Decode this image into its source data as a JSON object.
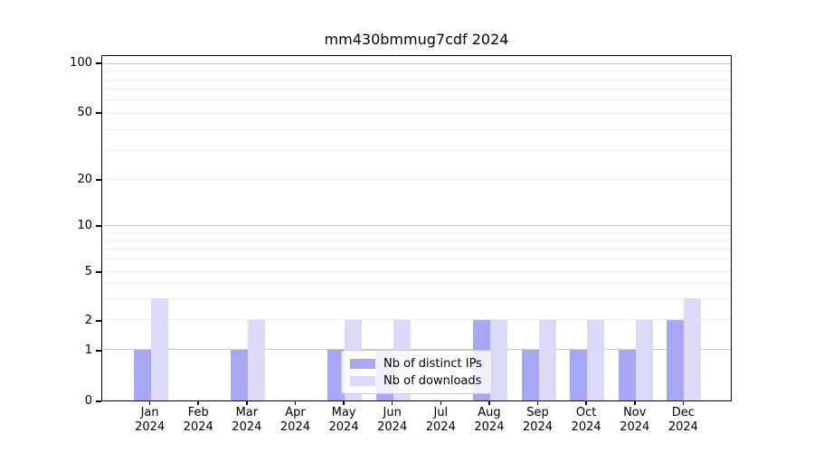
{
  "title": "mm430bmmug7cdf 2024",
  "chart_data": {
    "type": "bar",
    "categories": [
      "Jan",
      "Feb",
      "Mar",
      "Apr",
      "May",
      "Jun",
      "Jul",
      "Aug",
      "Sep",
      "Oct",
      "Nov",
      "Dec"
    ],
    "year_label": "2024",
    "series": [
      {
        "name": "Nb of distinct IPs",
        "color": "#a7a7f4",
        "values": [
          1,
          0,
          1,
          0,
          1,
          1,
          0,
          2,
          1,
          1,
          1,
          2
        ]
      },
      {
        "name": "Nb of downloads",
        "color": "#dbdbf9",
        "values": [
          3,
          0,
          2,
          0,
          2,
          2,
          0,
          2,
          2,
          2,
          2,
          3
        ]
      }
    ],
    "yscale": "symlog",
    "y_ticks": [
      0,
      1,
      2,
      5,
      10,
      20,
      50,
      100
    ],
    "ylim": [
      0,
      115
    ],
    "xlabel": "",
    "ylabel": "",
    "grid": true,
    "legend_position": "lower center (inside plot)",
    "colors": {
      "major_grid": "#c9c9c9",
      "minor_grid": "#ebebeb",
      "axis": "#000000",
      "legend_border": "#cccccc"
    }
  }
}
